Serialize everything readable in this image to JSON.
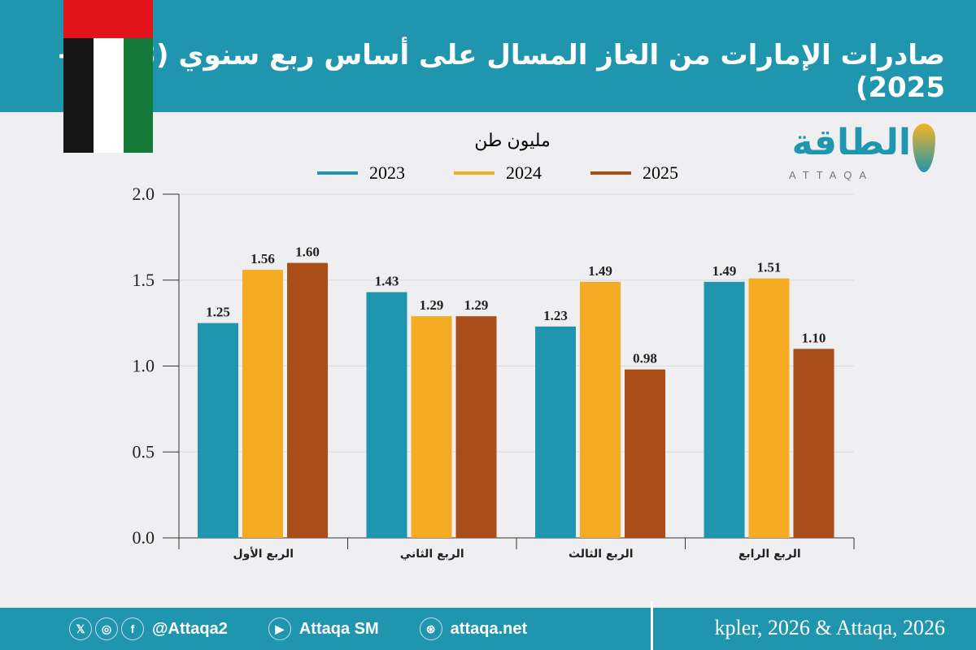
{
  "title": "صادرات الإمارات من الغاز المسال على أساس ربع سنوي (2023 - 2025)",
  "logo": {
    "arabic": "الطاقة",
    "english": "ATTAQA"
  },
  "footer": {
    "social_handle": "@Attaqa2",
    "youtube": "Attaqa SM",
    "website": "attaqa.net",
    "source": "kpler, 2026 & Attaqa, 2026",
    "icons": [
      "x-icon",
      "instagram-icon",
      "facebook-icon",
      "youtube-icon",
      "globe-icon"
    ]
  },
  "colors": {
    "header": "#1f96ae",
    "2023": "#1f96ae",
    "2024": "#f6ab24",
    "2025": "#ab4d18"
  },
  "chart_data": {
    "type": "bar",
    "unit_label": "مليون طن",
    "categories": [
      "الربع الأول",
      "الربع الثاني",
      "الربع الثالث",
      "الربع الرابع"
    ],
    "series": [
      {
        "name": "2023",
        "color": "#1f96ae",
        "values": [
          1.25,
          1.43,
          1.23,
          1.49
        ]
      },
      {
        "name": "2024",
        "color": "#f6ab24",
        "values": [
          1.56,
          1.29,
          1.49,
          1.51
        ]
      },
      {
        "name": "2025",
        "color": "#ab4d18",
        "values": [
          1.6,
          1.29,
          0.98,
          1.1
        ]
      }
    ],
    "ylim": [
      0,
      2.0
    ],
    "yticks": [
      "0.0",
      "0.5",
      "1.0",
      "1.5",
      "2.0"
    ],
    "grid": true,
    "legend_position": "top"
  }
}
